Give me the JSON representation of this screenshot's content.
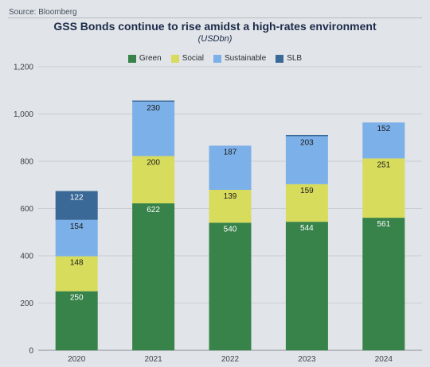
{
  "source": "Source: Bloomberg",
  "chart_data": {
    "type": "bar",
    "stacked": true,
    "title": "GSS Bonds continue to rise amidst a high-rates environment",
    "subtitle": "(USDbn)",
    "categories": [
      "2020",
      "2021",
      "2022",
      "2023",
      "2024"
    ],
    "series": [
      {
        "name": "Green",
        "color": "#37834a",
        "label_color": "#ffffff",
        "values": [
          250,
          622,
          540,
          544,
          561
        ]
      },
      {
        "name": "Social",
        "color": "#d8dc5c",
        "label_color": "#1a1a1a",
        "values": [
          148,
          200,
          139,
          159,
          251
        ]
      },
      {
        "name": "Sustainable",
        "color": "#7cb0e8",
        "label_color": "#1a1a1a",
        "values": [
          154,
          230,
          187,
          203,
          152
        ]
      },
      {
        "name": "SLB",
        "color": "#3a6897",
        "label_color": "#ffffff",
        "values": [
          122,
          5,
          0,
          5,
          0
        ]
      }
    ],
    "value_labels": [
      [
        "250",
        "622",
        "540",
        "544",
        "561"
      ],
      [
        "148",
        "200",
        "139",
        "159",
        "251"
      ],
      [
        "154",
        "230",
        "187",
        "203",
        "152"
      ],
      [
        "122",
        "",
        "",
        "",
        ""
      ]
    ],
    "ylim": [
      0,
      1200
    ],
    "yticks": [
      0,
      200,
      400,
      600,
      800,
      1000,
      1200
    ],
    "ytick_labels": [
      "0",
      "200",
      "400",
      "600",
      "800",
      "1,000",
      "1,200"
    ],
    "legend_position": "top-center",
    "grid": true
  }
}
